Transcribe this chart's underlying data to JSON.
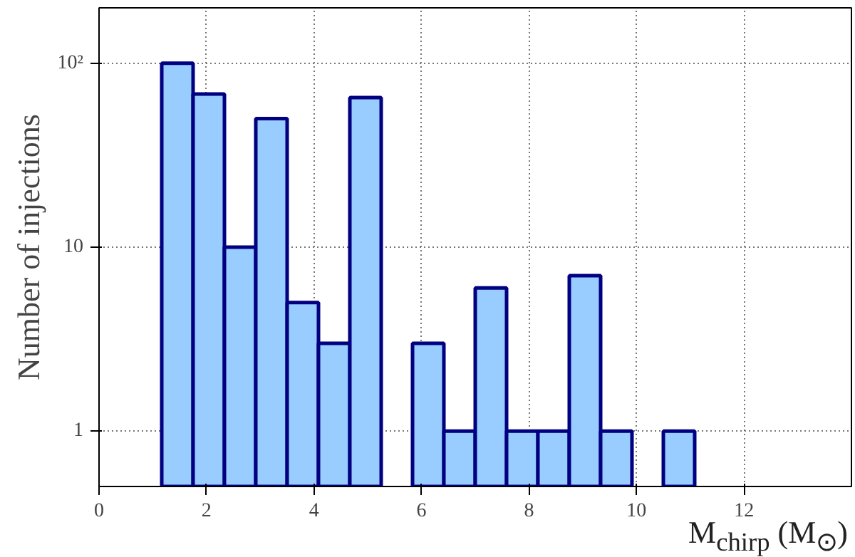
{
  "chart_data": {
    "type": "histogram",
    "bins": [
      0,
      0.5833,
      1.1667,
      1.75,
      2.3333,
      2.9167,
      3.5,
      4.0833,
      4.6667,
      5.25,
      5.8333,
      6.4167,
      7.0,
      7.5833,
      8.1667,
      8.75,
      9.3333,
      9.9167,
      10.5,
      11.0833,
      11.6667,
      12.25,
      12.8333,
      13.4167,
      14.0
    ],
    "values": [
      null,
      null,
      100,
      68,
      10,
      50,
      5,
      3,
      65,
      null,
      3,
      1,
      6,
      1,
      1,
      7,
      1,
      null,
      1,
      null,
      null,
      null,
      null,
      null
    ],
    "color": "#99ccff",
    "xlabel": "M$_{chirp}$ (M$_{⊙}$)",
    "ylabel": "Number of injections",
    "xlim": [
      0,
      14
    ],
    "ylim": [
      0.5,
      200
    ],
    "xticks": [
      0,
      2,
      4,
      6,
      8,
      10,
      12
    ],
    "yticks": [
      1,
      10,
      {
        "value": 100,
        "label": "10²"
      }
    ],
    "log": true,
    "grid": true
  }
}
